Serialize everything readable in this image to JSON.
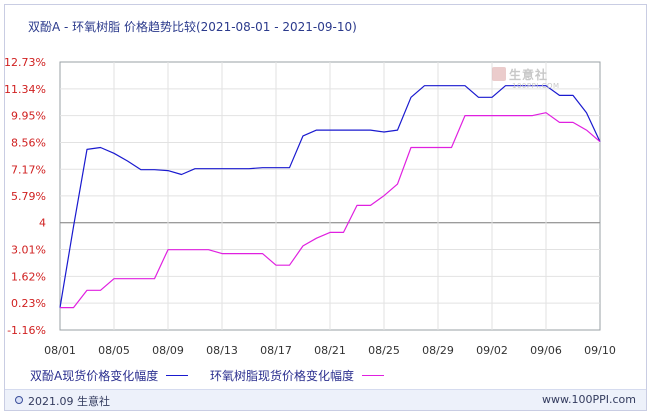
{
  "chart_data": {
    "type": "line",
    "title": "双酚A - 环氧树脂 价格趋势比较(2021-08-01 - 2021-09-10)",
    "x": [
      "08/01",
      "08/02",
      "08/03",
      "08/04",
      "08/05",
      "08/06",
      "08/07",
      "08/08",
      "08/09",
      "08/10",
      "08/11",
      "08/12",
      "08/13",
      "08/14",
      "08/15",
      "08/16",
      "08/17",
      "08/18",
      "08/19",
      "08/20",
      "08/21",
      "08/22",
      "08/23",
      "08/24",
      "08/25",
      "08/26",
      "08/27",
      "08/28",
      "08/29",
      "08/30",
      "08/31",
      "09/01",
      "09/02",
      "09/03",
      "09/04",
      "09/05",
      "09/06",
      "09/07",
      "09/08",
      "09/09",
      "09/10"
    ],
    "x_tick_labels": [
      "08/01",
      "08/05",
      "08/09",
      "08/13",
      "08/17",
      "08/21",
      "08/25",
      "08/29",
      "09/02",
      "09/06",
      "09/10"
    ],
    "y_tick_labels": [
      "12.73%",
      "11.34%",
      "9.95%",
      "8.56%",
      "7.17%",
      "5.79%",
      "4",
      "3.01%",
      "1.62%",
      "0.23%",
      "-1.16%"
    ],
    "y_tick_values": [
      12.73,
      11.34,
      9.95,
      8.56,
      7.17,
      5.79,
      4.4,
      3.01,
      1.62,
      0.23,
      -1.16
    ],
    "ylim": [
      -1.16,
      12.73
    ],
    "zero_line_value": 4.4,
    "grid": true,
    "legend_position": "bottom",
    "series": [
      {
        "name": "双酚A现货价格变化幅度",
        "color": "#1a1acf",
        "values": [
          0.0,
          4.2,
          8.2,
          8.3,
          8.0,
          7.6,
          7.15,
          7.15,
          7.1,
          6.9,
          7.2,
          7.2,
          7.2,
          7.2,
          7.2,
          7.25,
          7.25,
          7.25,
          8.9,
          9.2,
          9.2,
          9.2,
          9.2,
          9.2,
          9.1,
          9.2,
          10.9,
          11.5,
          11.5,
          11.5,
          11.5,
          10.9,
          10.9,
          11.5,
          11.5,
          11.5,
          11.5,
          11.0,
          11.0,
          10.1,
          8.6
        ]
      },
      {
        "name": "环氧树脂现货价格变化幅度",
        "color": "#e020e0",
        "values": [
          0.0,
          0.0,
          0.9,
          0.9,
          1.5,
          1.5,
          1.5,
          1.5,
          3.0,
          3.0,
          3.0,
          3.0,
          2.8,
          2.8,
          2.8,
          2.8,
          2.2,
          2.2,
          3.2,
          3.6,
          3.9,
          3.9,
          5.3,
          5.3,
          5.8,
          6.4,
          8.3,
          8.3,
          8.3,
          8.3,
          9.95,
          9.95,
          9.95,
          9.95,
          9.95,
          9.95,
          10.1,
          9.6,
          9.6,
          9.2,
          8.6
        ]
      }
    ]
  },
  "watermark": {
    "brand": "生意社",
    "url": "100PPI.COM"
  },
  "footer": {
    "date": "2021.09",
    "brand": "生意社",
    "url": "www.100PPI.com"
  }
}
